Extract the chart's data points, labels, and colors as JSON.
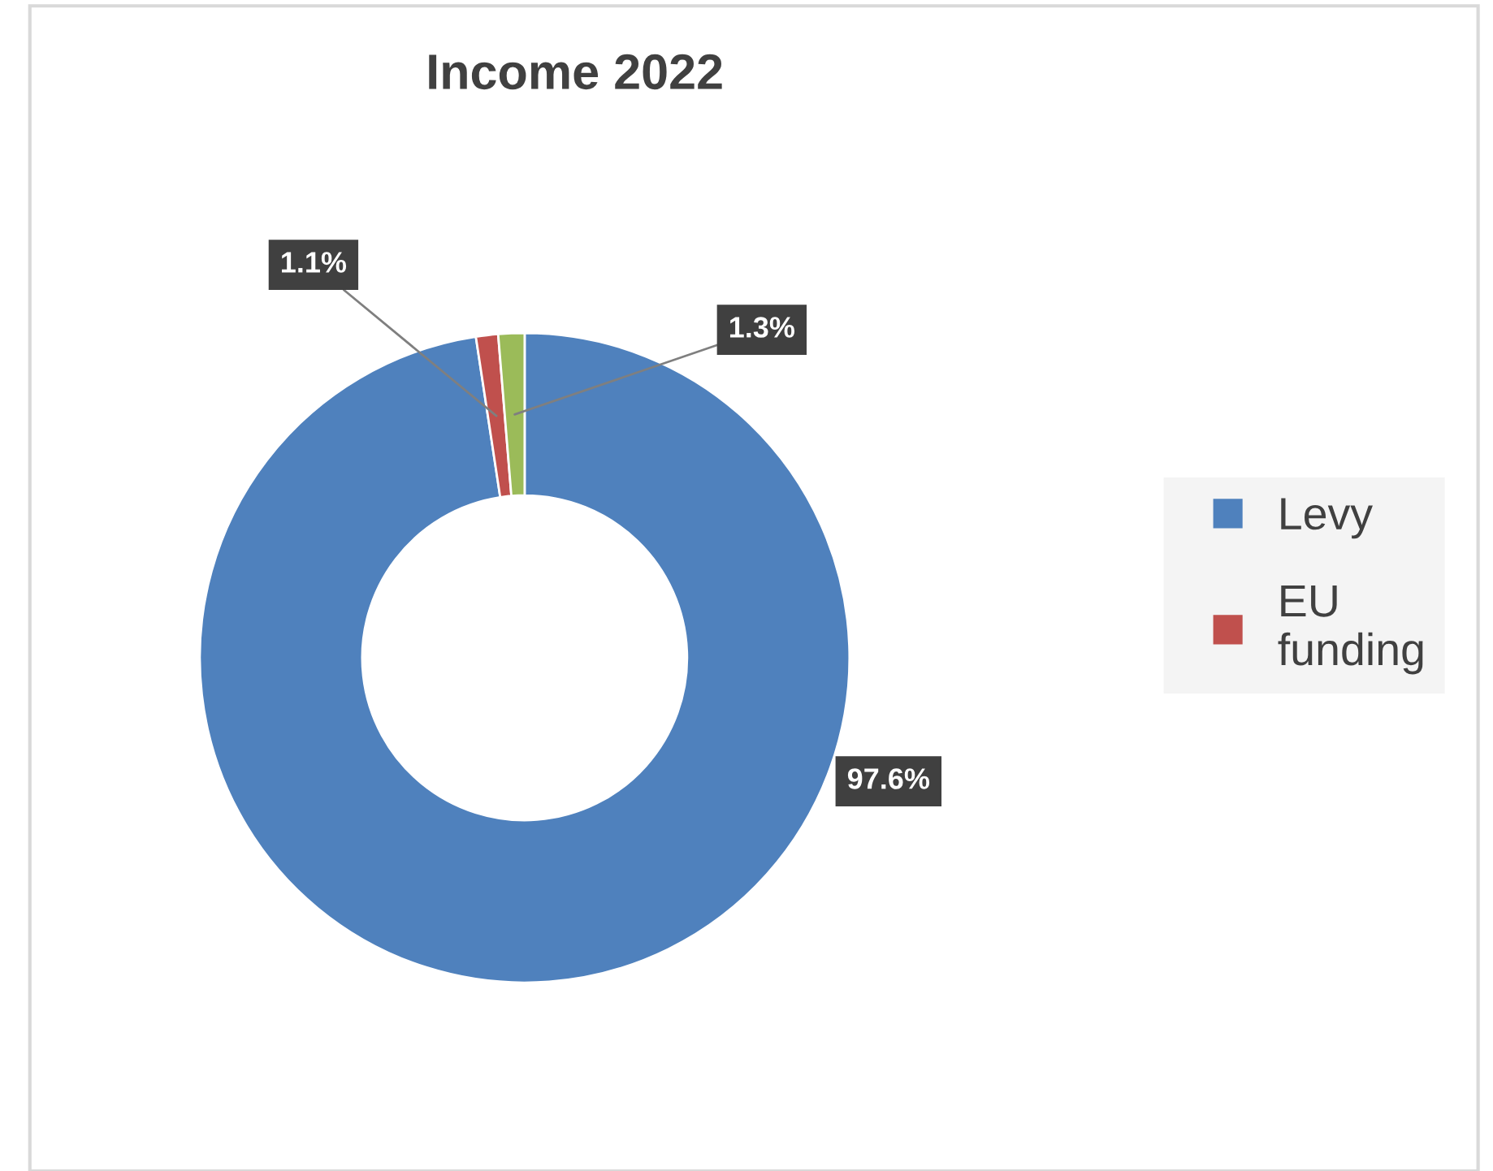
{
  "chart_data": {
    "type": "donut",
    "title": "Income 2022",
    "categories": [
      "Levy",
      "EU funding",
      null
    ],
    "values": [
      97.6,
      1.1,
      1.3
    ],
    "colors": [
      "#4f81bd",
      "#c0504d",
      "#9bbb59"
    ],
    "value_labels": [
      "97.6%",
      "1.1%",
      "1.3%"
    ],
    "legend": "right"
  }
}
